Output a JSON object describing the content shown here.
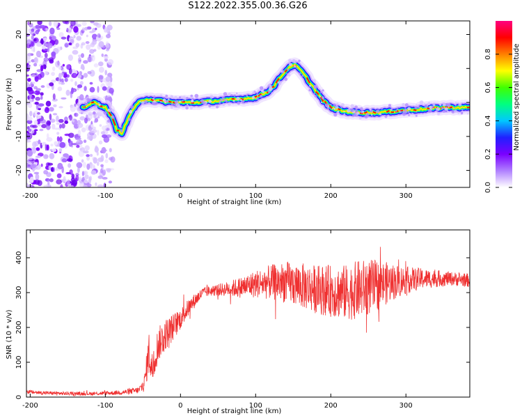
{
  "figure": {
    "title": "S122.2022.355.00.36.G26"
  },
  "chart_data": [
    {
      "type": "heatmap",
      "title": "S122.2022.355.00.36.G26",
      "xlabel": "Height of straight line (km)",
      "ylabel": "Frequency (Hz)",
      "xlim": [
        -205,
        385
      ],
      "ylim": [
        -25,
        24
      ],
      "x_ticks": [
        -200,
        -100,
        0,
        100,
        200,
        300
      ],
      "x_tick_labels": [
        "-200",
        "-100",
        "0",
        "100",
        "200",
        "300"
      ],
      "y_ticks": [
        20,
        10,
        0,
        -10,
        -20
      ],
      "y_tick_labels": [
        "20",
        "10",
        "0",
        "-10",
        "-20"
      ],
      "colorbar": {
        "label": "Normalized spectral amplitude",
        "range": [
          0,
          1
        ],
        "ticks": [
          0.0,
          0.2,
          0.4,
          0.6,
          0.8
        ],
        "tick_labels": [
          "0.0",
          "0.2",
          "0.4",
          "0.6",
          "0.8"
        ],
        "colormap": [
          "#ffffff",
          "#b080ff",
          "#7a00ff",
          "#2020ff",
          "#00c8ff",
          "#00ff80",
          "#40ff00",
          "#ffff00",
          "#ff8000",
          "#ff0000",
          "#ff0080"
        ]
      },
      "ridge_series": {
        "name": "",
        "x": [
          -130,
          -115,
          -100,
          -92,
          -85,
          -78,
          -72,
          -65,
          -55,
          -45,
          -30,
          -10,
          20,
          50,
          80,
          100,
          115,
          125,
          135,
          145,
          152,
          160,
          170,
          180,
          190,
          200,
          215,
          235,
          260,
          290,
          320,
          350,
          385
        ],
        "y": [
          -1.5,
          0,
          -1.5,
          -4,
          -8,
          -9,
          -6,
          -2.5,
          0,
          1,
          0.5,
          0,
          0,
          0.5,
          1,
          1.5,
          3,
          5,
          8,
          10.5,
          11,
          9.5,
          6.5,
          3.5,
          0.5,
          -1.5,
          -2.5,
          -3,
          -3,
          -2.5,
          -2,
          -1.5,
          -1.5
        ]
      },
      "noise_region": {
        "x_range": [
          -205,
          -90
        ],
        "y_range": [
          -25,
          24
        ]
      }
    },
    {
      "type": "line",
      "xlabel": "Height of straight line (km)",
      "ylabel": "SNR (10 * v/v)",
      "xlim": [
        -205,
        385
      ],
      "ylim": [
        0,
        480
      ],
      "x_ticks": [
        -200,
        -100,
        0,
        100,
        200,
        300
      ],
      "x_tick_labels": [
        "-200",
        "-100",
        "0",
        "100",
        "200",
        "300"
      ],
      "y_ticks": [
        0,
        100,
        200,
        300,
        400
      ],
      "y_tick_labels": [
        "0",
        "100",
        "200",
        "300",
        "400"
      ],
      "series": [
        {
          "name": "",
          "color": "#ef3030",
          "x": [
            -205,
            -180,
            -150,
            -120,
            -90,
            -70,
            -55,
            -48,
            -42,
            -38,
            -30,
            -20,
            -10,
            0,
            10,
            20,
            30,
            40,
            60,
            80,
            100,
            120,
            140,
            160,
            180,
            200,
            220,
            240,
            260,
            280,
            300,
            320,
            340,
            360,
            385
          ],
          "y": [
            15,
            12,
            10,
            10,
            12,
            15,
            20,
            40,
            130,
            80,
            150,
            180,
            200,
            225,
            255,
            280,
            300,
            305,
            310,
            315,
            325,
            330,
            330,
            320,
            310,
            305,
            300,
            310,
            320,
            330,
            335,
            340,
            340,
            340,
            335
          ],
          "noise_amplitude": [
            6,
            5,
            5,
            5,
            6,
            8,
            10,
            25,
            60,
            50,
            50,
            45,
            40,
            30,
            25,
            20,
            15,
            15,
            20,
            30,
            40,
            50,
            60,
            65,
            70,
            75,
            80,
            85,
            75,
            55,
            40,
            30,
            25,
            20,
            20
          ]
        }
      ]
    }
  ]
}
